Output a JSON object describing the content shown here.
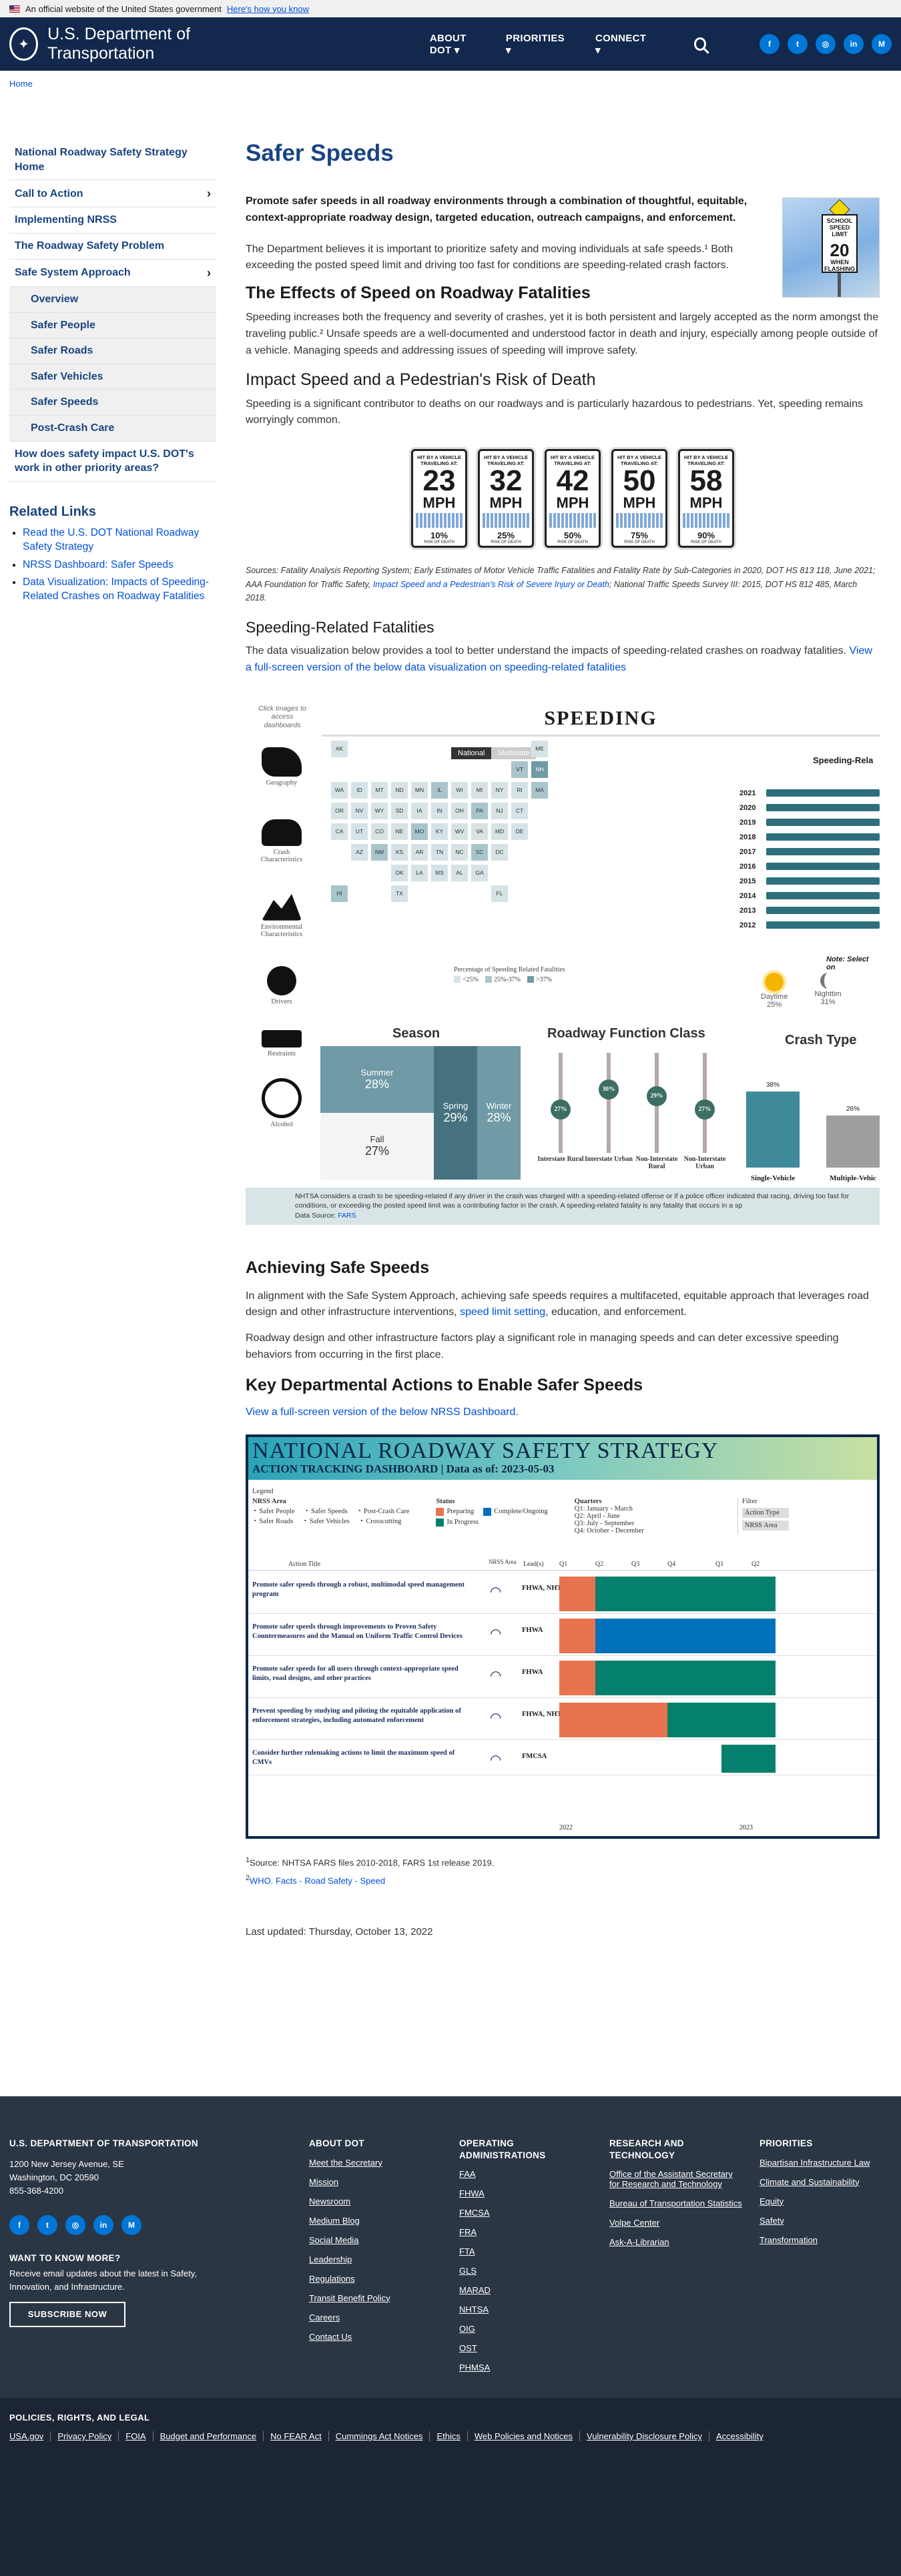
{
  "banner": {
    "text": "An official website of the United States government",
    "link": "Here's how you know"
  },
  "header": {
    "site_title": "U.S. Department of Transportation",
    "nav": [
      "ABOUT DOT",
      "PRIORITIES",
      "CONNECT"
    ],
    "socials": [
      "f",
      "t",
      "◎",
      "in",
      "M"
    ]
  },
  "breadcrumb": "Home",
  "sidebar": {
    "items": [
      {
        "label": "National Roadway Safety Strategy Home",
        "chev": ""
      },
      {
        "label": "Call to Action",
        "chev": "›"
      },
      {
        "label": "Implementing NRSS",
        "chev": ""
      },
      {
        "label": "The Roadway Safety Problem",
        "chev": ""
      },
      {
        "label": "Safe System Approach",
        "chev": "›"
      }
    ],
    "sub": [
      "Overview",
      "Safer People",
      "Safer Roads",
      "Safer Vehicles",
      "Safer Speeds",
      "Post-Crash Care"
    ],
    "last": "How does safety impact U.S. DOT's work in other priority areas?",
    "related_title": "Related Links",
    "related": [
      "Read the U.S. DOT National Roadway Safety Strategy",
      "NRSS Dashboard: Safer Speeds",
      "Data Visualization: Impacts of Speeding-Related Crashes on Roadway Fatalities"
    ]
  },
  "main": {
    "title": "Safer Speeds",
    "lead": "Promote safer speeds in all roadway environments through a combination of thoughtful, equitable, context-appropriate roadway design, targeted education, outreach campaigns, and enforcement.",
    "p1": "The Department believes it is important to prioritize safety and moving individuals at safe speeds.¹ Both exceeding the posted speed limit and driving too fast for conditions are speeding-related crash factors.",
    "sign": {
      "top": "SCHOOL",
      "label": "SPEED LIMIT",
      "value": "20",
      "note": "WHEN FLASHING"
    },
    "h_effects": "The Effects of Speed on Roadway Fatalities",
    "p2": "Speeding increases both the frequency and severity of crashes, yet it is both persistent and largely accepted as the norm amongst the traveling public.² Unsafe speeds are a well-documented and understood factor in death and injury, especially among people outside of a vehicle. Managing speeds and addressing issues of speeding will improve safety.",
    "h_impact": "Impact Speed and a Pedestrian's Risk of Death",
    "p3": "Speeding is a significant contributor to deaths on our roadways and is particularly hazardous to pedestrians. Yet, speeding remains worryingly common.",
    "speed_signs": [
      {
        "mph": "23",
        "risk": "10%"
      },
      {
        "mph": "32",
        "risk": "25%"
      },
      {
        "mph": "42",
        "risk": "50%"
      },
      {
        "mph": "50",
        "risk": "75%"
      },
      {
        "mph": "58",
        "risk": "90%"
      }
    ],
    "sign_top": "HIT BY A VEHICLE TRAVELING AT:",
    "sign_unit": "MPH",
    "sign_risk_label": "RISK OF DEATH",
    "sources": "Sources: Fatality Analysis Reporting System; Early Estimates of Motor Vehicle Traffic Fatalities and Fatality Rate by Sub-Categories in 2020, DOT HS 813 118, June 2021; AAA Foundation for Traffic Safety, ",
    "sources_link": "Impact Speed and a Pedestrian's Risk of Severe Injury or Death",
    "sources_end": "; National Traffic Speeds Survey III: 2015, DOT HS 812 485, March 2018.",
    "h_related": "Speeding-Related Fatalities",
    "p4": "The data visualization below provides a tool to better understand the impacts of speeding-related crashes on roadway fatalities. ",
    "p4_link": "View a full-screen version of the below data visualization on speeding-related fatalities",
    "h_achieving": "Achieving Safe Speeds",
    "p5a": "In alignment with the Safe System Approach, achieving safe speeds requires a multifaceted, equitable approach that leverages road design and other infrastructure interventions, ",
    "p5_link": "speed limit setting",
    "p5b": ", education, and enforcement.",
    "p6": "Roadway design and other infrastructure factors play a significant role in managing speeds and can deter excessive speeding behaviors from occurring in the first place.",
    "h_key": "Key Departmental Actions to Enable Safer Speeds",
    "nrss_link": "View a full-screen version of the below NRSS Dashboard.",
    "fn1": "Source: NHTSA FARS files 2010-2018, FARS 1st release 2019.",
    "fn2": "WHO. Facts - Road Safety - Speed",
    "updated": "Last updated: Thursday, October 13, 2022"
  },
  "dashboard": {
    "click_note": "Click Images to access dashboards",
    "title": "SPEEDING",
    "toggle": [
      "National",
      "Multistate"
    ],
    "icons": [
      "Geography",
      "Crash Characteristics",
      "Environmental Characteristics",
      "Drivers",
      "Restraints",
      "Alcohol"
    ],
    "sr_title": "Speeding-Rela",
    "select_note": "Note: Select on",
    "legend_title": "Percentage of Speeding Related Fatalities",
    "legend": [
      "<25%",
      "25%-37%",
      ">37%"
    ],
    "states": [
      [
        "AK",
        0,
        0,
        1
      ],
      [
        "ME",
        10,
        0,
        1
      ],
      [
        "VT",
        9,
        1,
        2
      ],
      [
        "NH",
        10,
        1,
        3
      ],
      [
        "WA",
        0,
        2,
        1
      ],
      [
        "ID",
        1,
        2,
        1
      ],
      [
        "MT",
        2,
        2,
        1
      ],
      [
        "ND",
        3,
        2,
        1
      ],
      [
        "MN",
        4,
        2,
        1
      ],
      [
        "IL",
        5,
        2,
        2
      ],
      [
        "WI",
        6,
        2,
        1
      ],
      [
        "MI",
        7,
        2,
        1
      ],
      [
        "NY",
        8,
        2,
        1
      ],
      [
        "RI",
        9,
        2,
        1
      ],
      [
        "MA",
        10,
        2,
        2
      ],
      [
        "OR",
        0,
        3,
        1
      ],
      [
        "NV",
        1,
        3,
        1
      ],
      [
        "WY",
        2,
        3,
        1
      ],
      [
        "SD",
        3,
        3,
        1
      ],
      [
        "IA",
        4,
        3,
        1
      ],
      [
        "IN",
        5,
        3,
        1
      ],
      [
        "OH",
        6,
        3,
        1
      ],
      [
        "PA",
        7,
        3,
        2
      ],
      [
        "NJ",
        8,
        3,
        1
      ],
      [
        "CT",
        9,
        3,
        1
      ],
      [
        "CA",
        0,
        4,
        1
      ],
      [
        "UT",
        1,
        4,
        1
      ],
      [
        "CO",
        2,
        4,
        1
      ],
      [
        "NE",
        3,
        4,
        1
      ],
      [
        "MO",
        4,
        4,
        2
      ],
      [
        "KY",
        5,
        4,
        1
      ],
      [
        "WV",
        6,
        4,
        1
      ],
      [
        "VA",
        7,
        4,
        1
      ],
      [
        "MD",
        8,
        4,
        1
      ],
      [
        "DE",
        9,
        4,
        1
      ],
      [
        "AZ",
        1,
        5,
        1
      ],
      [
        "NM",
        2,
        5,
        2
      ],
      [
        "KS",
        3,
        5,
        1
      ],
      [
        "AR",
        4,
        5,
        1
      ],
      [
        "TN",
        5,
        5,
        1
      ],
      [
        "NC",
        6,
        5,
        1
      ],
      [
        "SC",
        7,
        5,
        2
      ],
      [
        "DC",
        8,
        5,
        1
      ],
      [
        "OK",
        3,
        6,
        1
      ],
      [
        "LA",
        4,
        6,
        1
      ],
      [
        "MS",
        5,
        6,
        1
      ],
      [
        "AL",
        6,
        6,
        1
      ],
      [
        "GA",
        7,
        6,
        1
      ],
      [
        "HI",
        0,
        7,
        2
      ],
      [
        "TX",
        3,
        7,
        1
      ],
      [
        "FL",
        8,
        7,
        1
      ]
    ],
    "years": [
      "2021",
      "2020",
      "2019",
      "2018",
      "2017",
      "2016",
      "2015",
      "2014",
      "2013",
      "2012"
    ],
    "daynight": [
      {
        "label": "Daytime",
        "value": "25%"
      },
      {
        "label": "Nighttim",
        "value": "31%"
      }
    ],
    "season_title": "Season",
    "season": [
      {
        "name": "Summer",
        "value": "28%"
      },
      {
        "name": "Fall",
        "value": "27%"
      },
      {
        "name": "Spring",
        "value": "29%"
      },
      {
        "name": "Winter",
        "value": "28%"
      }
    ],
    "rfc_title": "Roadway Function Class",
    "rfc": [
      {
        "name": "Interstate Rural",
        "value": "27%"
      },
      {
        "name": "Interstate Urban",
        "value": "30%"
      },
      {
        "name": "Non-Interstate Rural",
        "value": "29%"
      },
      {
        "name": "Non-Interstate Urban",
        "value": "27%"
      }
    ],
    "ct_title": "Crash Type",
    "ct": [
      {
        "name": "Single-Vehicle",
        "value": "38%"
      },
      {
        "name": "Multiple-Vehic",
        "value": "26%"
      }
    ],
    "note": "NHTSA considers a crash to be speeding-related if any driver in the crash was charged with a speeding-related offense or if a police officer indicated that racing, driving too fast for conditions, or exceeding the posted speed limit was a contributing factor in the crash. A speeding-related fatality is any fatality that occurs in a sp",
    "data_source": "Data Source: ",
    "data_source_link": "FARS",
    "colors": {
      "low": "#d6e3e6",
      "mid": "#a9c5cc",
      "high": "#6f9aa6",
      "bar": "#2e6f7d"
    }
  },
  "nrss": {
    "title": "NATIONAL ROADWAY SAFETY STRATEGY",
    "subtitle": "ACTION TRACKING DASHBOARD | Data as of:  2023-05-03",
    "legend_title": "Legend",
    "nrss_area": "NRSS Area",
    "areas": [
      "Safer People",
      "Safer Speeds",
      "Post-Crash Care",
      "Safer Roads",
      "Safer Vehicles",
      "Crosscutting"
    ],
    "status_title": "Status",
    "statuses": [
      "Preparing",
      "In Progress",
      "Complete/Ongoing"
    ],
    "quarters_title": "Quarters",
    "quarters": [
      "Q1: January - March",
      "Q2: April - June",
      "Q3: July - September",
      "Q4: October - December"
    ],
    "filter": "Filter",
    "filters": [
      "Action Type",
      "NRSS Area"
    ],
    "cols": [
      "Action Title",
      "NRSS Area",
      "Lead(s)"
    ],
    "qlabels": [
      "Q1",
      "Q2",
      "Q3",
      "Q4",
      "Q1",
      "Q2"
    ],
    "years": [
      "2022",
      "2023"
    ],
    "rows": [
      {
        "title": "Promote safer speeds through a robust, multimodal speed management program",
        "lead": "FHWA, NHTSA"
      },
      {
        "title": "Promote safer speeds through improvements to Proven Safety Countermeasures and the Manual on Uniform Traffic Control Devices",
        "lead": "FHWA"
      },
      {
        "title": "Promote safer speeds for all users through context-appropriate speed limits, road designs, and other practices",
        "lead": "FHWA"
      },
      {
        "title": "Prevent speeding by studying and piloting the equitable application of enforcement strategies, including automated enforcement",
        "lead": "FHWA, NHTSA"
      },
      {
        "title": "Consider further rulemaking actions to limit the maximum speed of CMVs",
        "lead": "FMCSA"
      }
    ],
    "colors": {
      "preparing": "#e8734f",
      "progress": "#05806f",
      "complete": "#0072bb"
    }
  },
  "footer": {
    "org": "U.S. DEPARTMENT OF TRANSPORTATION",
    "addr1": "1200 New Jersey Avenue, SE",
    "addr2": "Washington, DC 20590",
    "phone": "855-368-4200",
    "want": "WANT TO KNOW MORE?",
    "want_text": "Receive email updates about the latest in Safety, Innovation, and Infrastructure.",
    "subscribe": "SUBSCRIBE NOW",
    "cols": [
      {
        "title": "ABOUT DOT",
        "links": [
          "Meet the Secretary",
          "Mission",
          "Newsroom",
          "Medium Blog",
          "Social Media",
          "Leadership",
          "Regulations",
          "Transit Benefit Policy",
          "Careers",
          "Contact Us"
        ]
      },
      {
        "title": "OPERATING ADMINISTRATIONS",
        "links": [
          "FAA",
          "FHWA",
          "FMCSA",
          "FRA",
          "FTA",
          "GLS",
          "MARAD",
          "NHTSA",
          "OIG",
          "OST",
          "PHMSA"
        ]
      },
      {
        "title": "RESEARCH AND TECHNOLOGY",
        "links": [
          "Office of the Assistant Secretary for Research and Technology",
          "Bureau of Transportation Statistics",
          "Volpe Center",
          "Ask-A-Librarian"
        ]
      },
      {
        "title": "PRIORITIES",
        "links": [
          "Bipartisan Infrastructure Law",
          "Climate and Sustainability",
          "Equity",
          "Safety",
          "Transformation"
        ]
      }
    ],
    "bottom_title": "POLICIES, RIGHTS, AND LEGAL",
    "bottom_links": [
      "USA.gov",
      "Privacy Policy",
      "FOIA",
      "Budget and Performance",
      "No FEAR Act",
      "Cummings Act Notices",
      "Ethics",
      "Web Policies and Notices",
      "Vulnerability Disclosure Policy",
      "Accessibility"
    ]
  }
}
